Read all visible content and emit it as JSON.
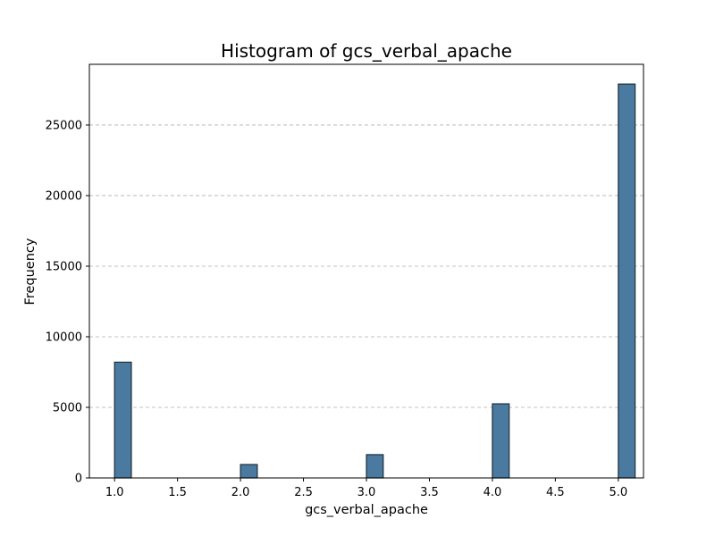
{
  "chart_data": {
    "type": "bar",
    "title": "Histogram of gcs_verbal_apache",
    "xlabel": "gcs_verbal_apache",
    "ylabel": "Frequency",
    "xlim": [
      0.8,
      5.2
    ],
    "ylim": [
      0,
      29300
    ],
    "xticks": [
      1.0,
      1.5,
      2.0,
      2.5,
      3.0,
      3.5,
      4.0,
      4.5,
      5.0
    ],
    "xtick_labels": [
      "1.0",
      "1.5",
      "2.0",
      "2.5",
      "3.0",
      "3.5",
      "4.0",
      "4.5",
      "5.0"
    ],
    "yticks": [
      0,
      5000,
      10000,
      15000,
      20000,
      25000
    ],
    "ytick_labels": [
      "0",
      "5000",
      "10000",
      "15000",
      "20000",
      "25000"
    ],
    "grid": "y-dashed",
    "bin_width": 0.1333,
    "bars": [
      {
        "x": 1.0,
        "value": 8200
      },
      {
        "x": 2.0,
        "value": 950
      },
      {
        "x": 3.0,
        "value": 1650
      },
      {
        "x": 4.0,
        "value": 5250
      },
      {
        "x": 5.0,
        "value": 27900
      }
    ],
    "colors": {
      "bar_fill": "#4a7aa0",
      "bar_edge": "#1f2f3a",
      "grid": "#b0b0b0"
    }
  }
}
